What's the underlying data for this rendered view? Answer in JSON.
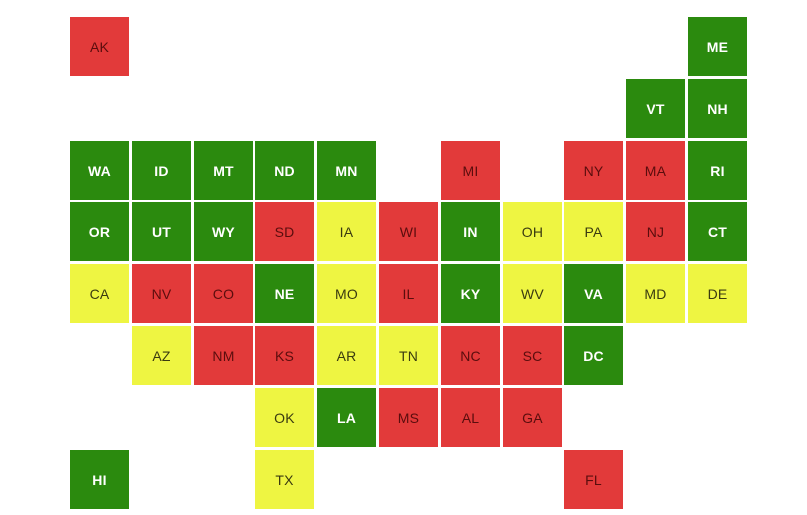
{
  "header": {
    "fragment": ""
  },
  "colors": {
    "green": "#2b8a0e",
    "red": "#e23a3a",
    "yellow": "#eef542"
  },
  "states": [
    {
      "abbr": "AK",
      "status": "red",
      "row": 0,
      "col": 0
    },
    {
      "abbr": "ME",
      "status": "green",
      "row": 0,
      "col": 10
    },
    {
      "abbr": "VT",
      "status": "green",
      "row": 1,
      "col": 9
    },
    {
      "abbr": "NH",
      "status": "green",
      "row": 1,
      "col": 10
    },
    {
      "abbr": "WA",
      "status": "green",
      "row": 2,
      "col": 0
    },
    {
      "abbr": "ID",
      "status": "green",
      "row": 2,
      "col": 1
    },
    {
      "abbr": "MT",
      "status": "green",
      "row": 2,
      "col": 2
    },
    {
      "abbr": "ND",
      "status": "green",
      "row": 2,
      "col": 3
    },
    {
      "abbr": "MN",
      "status": "green",
      "row": 2,
      "col": 4
    },
    {
      "abbr": "MI",
      "status": "red",
      "row": 2,
      "col": 6
    },
    {
      "abbr": "NY",
      "status": "red",
      "row": 2,
      "col": 8
    },
    {
      "abbr": "MA",
      "status": "red",
      "row": 2,
      "col": 9
    },
    {
      "abbr": "RI",
      "status": "green",
      "row": 2,
      "col": 10
    },
    {
      "abbr": "OR",
      "status": "green",
      "row": 3,
      "col": 0
    },
    {
      "abbr": "UT",
      "status": "green",
      "row": 3,
      "col": 1
    },
    {
      "abbr": "WY",
      "status": "green",
      "row": 3,
      "col": 2
    },
    {
      "abbr": "SD",
      "status": "red",
      "row": 3,
      "col": 3
    },
    {
      "abbr": "IA",
      "status": "yellow",
      "row": 3,
      "col": 4
    },
    {
      "abbr": "WI",
      "status": "red",
      "row": 3,
      "col": 5
    },
    {
      "abbr": "IN",
      "status": "green",
      "row": 3,
      "col": 6
    },
    {
      "abbr": "OH",
      "status": "yellow",
      "row": 3,
      "col": 7
    },
    {
      "abbr": "PA",
      "status": "yellow",
      "row": 3,
      "col": 8
    },
    {
      "abbr": "NJ",
      "status": "red",
      "row": 3,
      "col": 9
    },
    {
      "abbr": "CT",
      "status": "green",
      "row": 3,
      "col": 10
    },
    {
      "abbr": "CA",
      "status": "yellow",
      "row": 4,
      "col": 0
    },
    {
      "abbr": "NV",
      "status": "red",
      "row": 4,
      "col": 1
    },
    {
      "abbr": "CO",
      "status": "red",
      "row": 4,
      "col": 2
    },
    {
      "abbr": "NE",
      "status": "green",
      "row": 4,
      "col": 3
    },
    {
      "abbr": "MO",
      "status": "yellow",
      "row": 4,
      "col": 4
    },
    {
      "abbr": "IL",
      "status": "red",
      "row": 4,
      "col": 5
    },
    {
      "abbr": "KY",
      "status": "green",
      "row": 4,
      "col": 6
    },
    {
      "abbr": "WV",
      "status": "yellow",
      "row": 4,
      "col": 7
    },
    {
      "abbr": "VA",
      "status": "green",
      "row": 4,
      "col": 8
    },
    {
      "abbr": "MD",
      "status": "yellow",
      "row": 4,
      "col": 9
    },
    {
      "abbr": "DE",
      "status": "yellow",
      "row": 4,
      "col": 10
    },
    {
      "abbr": "AZ",
      "status": "yellow",
      "row": 5,
      "col": 1
    },
    {
      "abbr": "NM",
      "status": "red",
      "row": 5,
      "col": 2
    },
    {
      "abbr": "KS",
      "status": "red",
      "row": 5,
      "col": 3
    },
    {
      "abbr": "AR",
      "status": "yellow",
      "row": 5,
      "col": 4
    },
    {
      "abbr": "TN",
      "status": "yellow",
      "row": 5,
      "col": 5
    },
    {
      "abbr": "NC",
      "status": "red",
      "row": 5,
      "col": 6
    },
    {
      "abbr": "SC",
      "status": "red",
      "row": 5,
      "col": 7
    },
    {
      "abbr": "DC",
      "status": "green",
      "row": 5,
      "col": 8
    },
    {
      "abbr": "OK",
      "status": "yellow",
      "row": 6,
      "col": 3
    },
    {
      "abbr": "LA",
      "status": "green",
      "row": 6,
      "col": 4
    },
    {
      "abbr": "MS",
      "status": "red",
      "row": 6,
      "col": 5
    },
    {
      "abbr": "AL",
      "status": "red",
      "row": 6,
      "col": 6
    },
    {
      "abbr": "GA",
      "status": "red",
      "row": 6,
      "col": 7
    },
    {
      "abbr": "HI",
      "status": "green",
      "row": 7,
      "col": 0
    },
    {
      "abbr": "TX",
      "status": "yellow",
      "row": 7,
      "col": 3
    },
    {
      "abbr": "FL",
      "status": "red",
      "row": 7,
      "col": 8
    }
  ]
}
